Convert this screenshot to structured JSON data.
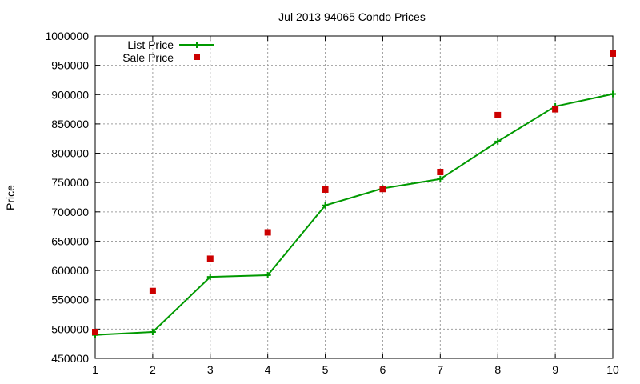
{
  "chart_data": {
    "type": "line",
    "title": "Jul 2013 94065 Condo Prices",
    "xlabel": "",
    "ylabel": "Price",
    "xlim": [
      1,
      10
    ],
    "ylim": [
      450000,
      1000000
    ],
    "x_ticks": [
      1,
      2,
      3,
      4,
      5,
      6,
      7,
      8,
      9,
      10
    ],
    "y_ticks": [
      450000,
      500000,
      550000,
      600000,
      650000,
      700000,
      750000,
      800000,
      850000,
      900000,
      950000,
      1000000
    ],
    "grid": true,
    "legend_position": "top-left",
    "x": [
      1,
      2,
      3,
      4,
      5,
      6,
      7,
      8,
      9,
      10
    ],
    "series": [
      {
        "name": "List Price",
        "style": "line+plus",
        "color": "#009900",
        "values": [
          490000,
          495000,
          589000,
          592000,
          711000,
          740000,
          756000,
          820000,
          880000,
          901000
        ]
      },
      {
        "name": "Sale Price",
        "style": "squares",
        "color": "#cc0000",
        "values": [
          495000,
          565000,
          620000,
          665000,
          738000,
          739000,
          768000,
          865000,
          875000,
          970000
        ]
      }
    ]
  }
}
